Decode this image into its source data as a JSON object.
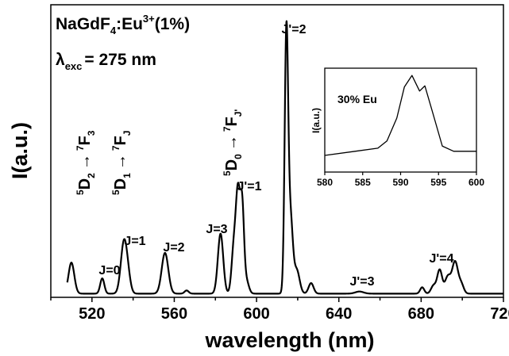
{
  "chart_data": [
    {
      "type": "line",
      "id": "main",
      "xlabel": "wavelength (nm)",
      "ylabel": "I(a.u.)",
      "xlim": [
        500,
        720
      ],
      "ylim": [
        0,
        1
      ],
      "xticks": [
        520,
        560,
        600,
        640,
        680,
        720
      ],
      "xtick_labels": [
        "520",
        "560",
        "600",
        "640",
        "680",
        "720"
      ],
      "legend": "none",
      "grid": false,
      "peaks": [
        {
          "x": 510,
          "y": 0.118,
          "w": 1.4
        },
        {
          "x": 525,
          "y": 0.058,
          "w": 1.0
        },
        {
          "x": 535.5,
          "y": 0.19,
          "w": 1.5
        },
        {
          "x": 537.5,
          "y": 0.05,
          "w": 1.3
        },
        {
          "x": 555.5,
          "y": 0.155,
          "w": 1.6
        },
        {
          "x": 566,
          "y": 0.012,
          "w": 1.0
        },
        {
          "x": 582.5,
          "y": 0.228,
          "w": 1.3
        },
        {
          "x": 589,
          "y": 0.18,
          "w": 1.1
        },
        {
          "x": 591,
          "y": 0.36,
          "w": 1.0
        },
        {
          "x": 593,
          "y": 0.32,
          "w": 0.9
        },
        {
          "x": 595,
          "y": 0.05,
          "w": 1.2
        },
        {
          "x": 614.5,
          "y": 0.98,
          "w": 0.85
        },
        {
          "x": 616.5,
          "y": 0.28,
          "w": 1.1
        },
        {
          "x": 619.5,
          "y": 0.09,
          "w": 1.4
        },
        {
          "x": 626.5,
          "y": 0.04,
          "w": 1.2
        },
        {
          "x": 650,
          "y": 0.008,
          "w": 2.0
        },
        {
          "x": 680.5,
          "y": 0.024,
          "w": 1.0
        },
        {
          "x": 686,
          "y": 0.03,
          "w": 1.2
        },
        {
          "x": 689,
          "y": 0.09,
          "w": 1.2
        },
        {
          "x": 693,
          "y": 0.065,
          "w": 1.4
        },
        {
          "x": 696.5,
          "y": 0.12,
          "w": 1.4
        },
        {
          "x": 699.5,
          "y": 0.035,
          "w": 1.2
        }
      ],
      "baseline": 0.008,
      "x_range": [
        508,
        720
      ],
      "annotations": [
        "NaGdF4:Eu3+(1%)",
        "λexc = 275 nm",
        "5D2 → 7F3",
        "5D1 → 7FJ",
        "5D0 → 7FJ'",
        "J=0",
        "J=1",
        "J=2",
        "J=3",
        "J'=1",
        "J'=2",
        "J'=3",
        "J'=4"
      ]
    },
    {
      "type": "line",
      "id": "inset",
      "ylabel": "I(a.u.)",
      "xlim": [
        580,
        600
      ],
      "ylim": [
        0,
        1
      ],
      "xticks": [
        580,
        585,
        590,
        595,
        600
      ],
      "xtick_labels": [
        "580",
        "585",
        "590",
        "595",
        "600"
      ],
      "legend": "none",
      "grid": false,
      "x": [
        580,
        584,
        587,
        588.2,
        589.5,
        590.5,
        591.5,
        592.5,
        593.2,
        594.2,
        595.5,
        597,
        600
      ],
      "y": [
        0.16,
        0.2,
        0.23,
        0.3,
        0.52,
        0.82,
        0.93,
        0.78,
        0.83,
        0.58,
        0.25,
        0.2,
        0.2
      ],
      "annotations": [
        "30% Eu"
      ]
    }
  ],
  "labels": {
    "compound": "NaGdF",
    "compound_sub": "4",
    "compound_ion": ":Eu",
    "compound_sup": "3+",
    "compound_conc": "(1%)",
    "lambda": "λ",
    "lambda_sub": "exc",
    "lambda_val": "= 275 nm",
    "arrow": "→",
    "t1_from": "D",
    "t1_from_pre": "5",
    "t1_from_sub": "2",
    "t1_to": "F",
    "t1_to_pre": "7",
    "t1_to_sub": "3",
    "t2_from": "D",
    "t2_from_pre": "5",
    "t2_from_sub": "1",
    "t2_to": "F",
    "t2_to_pre": "7",
    "t2_to_sub": "J",
    "t3_from": "D",
    "t3_from_pre": "5",
    "t3_from_sub": "0",
    "t3_to": "F",
    "t3_to_pre": "7",
    "t3_to_sub": "J'",
    "j0": "J=0",
    "j1": "J=1",
    "j2": "J=2",
    "j3": "J=3",
    "jp1": "J'=1",
    "jp2": "J'=2",
    "jp3": "J'=3",
    "jp4": "J'=4",
    "inset_text": "30% Eu"
  }
}
